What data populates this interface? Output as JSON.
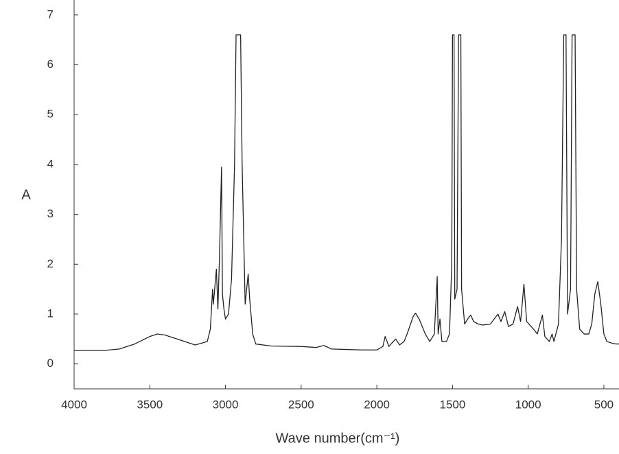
{
  "chart_data": {
    "type": "line",
    "xlabel": "Wave number(cm⁻¹)",
    "ylabel": "A",
    "x": [
      4000,
      3800,
      3700,
      3600,
      3500,
      3450,
      3400,
      3300,
      3200,
      3120,
      3100,
      3085,
      3080,
      3060,
      3050,
      3040,
      3026,
      3020,
      3010,
      3000,
      2980,
      2960,
      2940,
      2930,
      2900,
      2890,
      2870,
      2860,
      2850,
      2840,
      2820,
      2800,
      2700,
      2500,
      2400,
      2350,
      2300,
      2100,
      2000,
      1960,
      1945,
      1920,
      1900,
      1875,
      1850,
      1820,
      1800,
      1760,
      1745,
      1720,
      1680,
      1650,
      1620,
      1601,
      1595,
      1583,
      1570,
      1540,
      1520,
      1505,
      1500,
      1490,
      1485,
      1470,
      1460,
      1445,
      1440,
      1420,
      1400,
      1380,
      1360,
      1330,
      1300,
      1250,
      1200,
      1180,
      1155,
      1130,
      1100,
      1070,
      1050,
      1028,
      1010,
      980,
      965,
      940,
      906,
      890,
      860,
      842,
      830,
      800,
      780,
      765,
      750,
      740,
      720,
      710,
      690,
      680,
      660,
      630,
      600,
      580,
      560,
      540,
      520,
      500,
      480,
      450,
      420,
      400
    ],
    "values": [
      0.27,
      0.27,
      0.3,
      0.4,
      0.55,
      0.6,
      0.58,
      0.48,
      0.38,
      0.45,
      0.7,
      1.5,
      1.2,
      1.9,
      1.1,
      2.1,
      3.95,
      1.4,
      1.1,
      0.9,
      1.0,
      1.7,
      4.0,
      6.6,
      6.6,
      4.0,
      1.2,
      1.5,
      1.8,
      1.3,
      0.6,
      0.4,
      0.36,
      0.35,
      0.33,
      0.37,
      0.3,
      0.28,
      0.28,
      0.35,
      0.55,
      0.35,
      0.42,
      0.5,
      0.38,
      0.45,
      0.6,
      0.95,
      1.02,
      0.9,
      0.6,
      0.45,
      0.6,
      1.75,
      0.6,
      0.9,
      0.45,
      0.45,
      0.6,
      2.0,
      6.6,
      6.6,
      1.3,
      1.5,
      6.6,
      6.6,
      1.5,
      0.8,
      0.9,
      0.98,
      0.85,
      0.8,
      0.78,
      0.8,
      1.0,
      0.85,
      1.05,
      0.75,
      0.8,
      1.15,
      0.85,
      1.6,
      0.85,
      0.75,
      0.7,
      0.6,
      0.98,
      0.55,
      0.45,
      0.6,
      0.45,
      0.8,
      2.5,
      6.6,
      6.6,
      1.0,
      1.5,
      6.6,
      6.6,
      1.5,
      0.7,
      0.6,
      0.6,
      0.8,
      1.4,
      1.65,
      1.2,
      0.6,
      0.45,
      0.42,
      0.4,
      0.4
    ],
    "color": "#222222",
    "xlim": [
      4000,
      400
    ],
    "ylim": [
      -0.5,
      7.3
    ],
    "xticks": [
      4000,
      3500,
      3000,
      2500,
      2000,
      1500,
      1000,
      500
    ],
    "yticks": [
      0,
      1,
      2,
      3,
      4,
      5,
      6,
      7
    ]
  }
}
